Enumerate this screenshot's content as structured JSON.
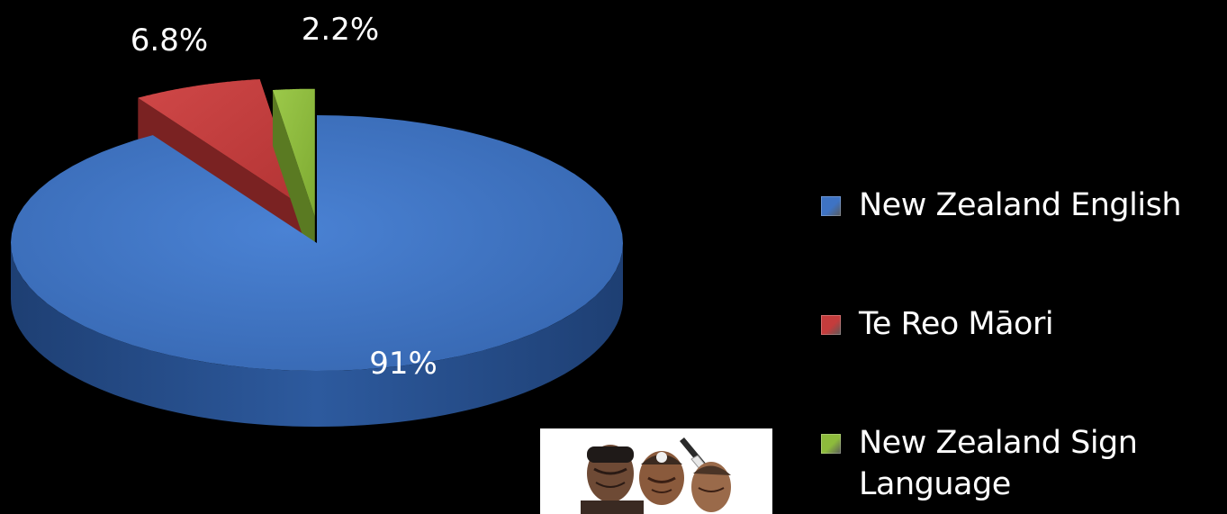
{
  "chart_data": {
    "type": "pie",
    "title": "",
    "categories": [
      "New Zealand English",
      "Te Reo Māori",
      "New Zealand Sign Language"
    ],
    "values": [
      91,
      6.8,
      2.2
    ],
    "data_labels": [
      "91%",
      "6.8%",
      "2.2%"
    ],
    "colors": [
      "#3E73C4",
      "#C43C3C",
      "#8DBB3C"
    ],
    "exploded": [
      false,
      true,
      true
    ],
    "style": "3d",
    "legend_position": "right"
  },
  "photo": {
    "icon": "maori-people-photo"
  }
}
